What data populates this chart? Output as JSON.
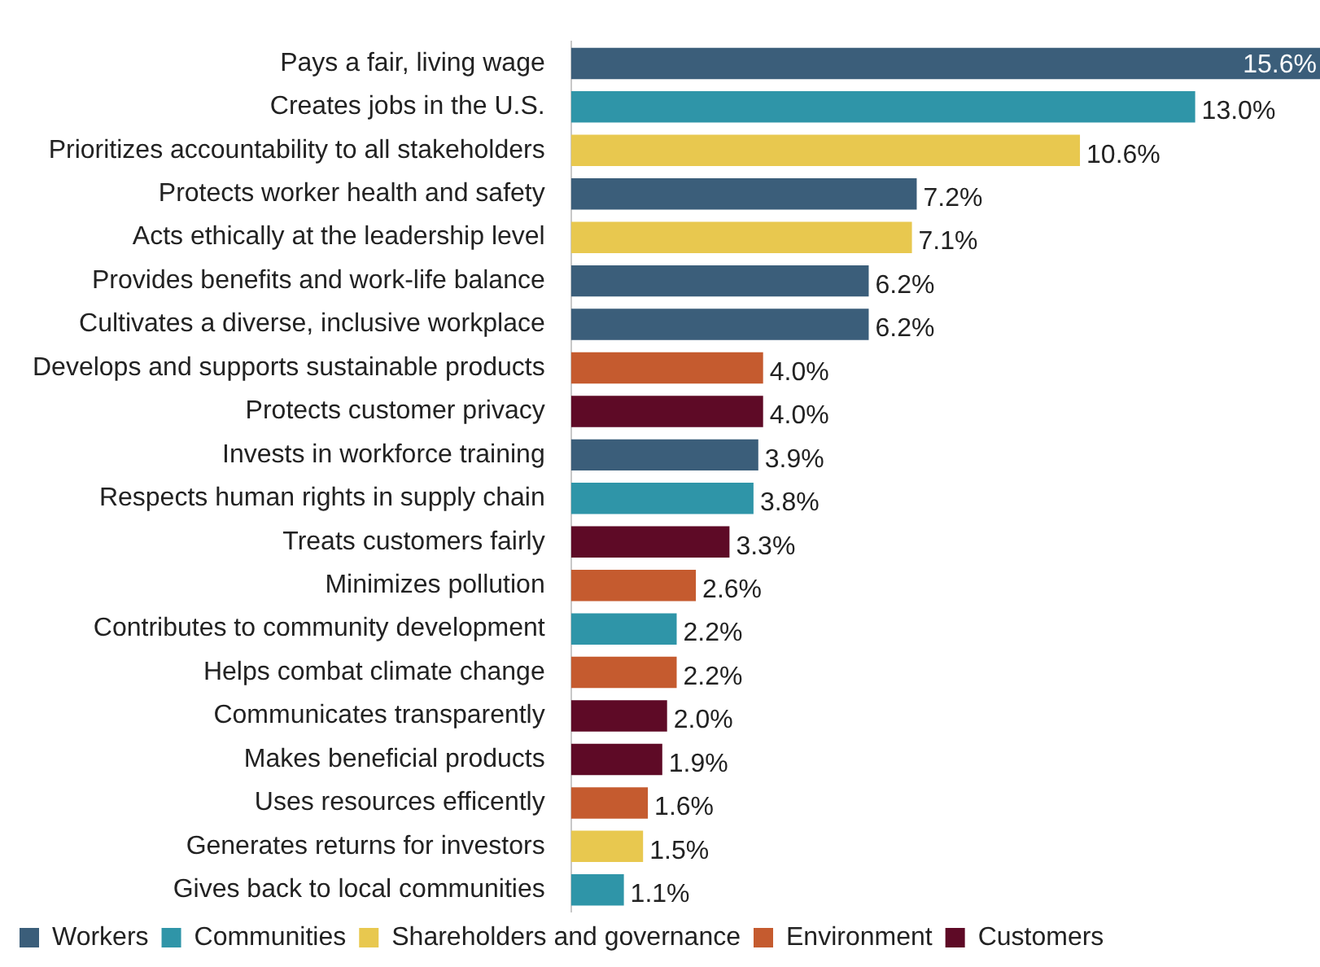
{
  "chart_data": {
    "type": "bar",
    "orientation": "horizontal",
    "stacked": true,
    "legend": "bottom",
    "grid": false,
    "categories": [
      "Pays a fair, living wage",
      "Creates jobs in the U.S.",
      "Prioritizes accountability to all stakeholders",
      "Protects worker health and safety",
      "Acts ethically at the leadership level",
      "Provides benefits and work-life balance",
      "Cultivates a diverse, inclusive workplace",
      "Develops and supports sustainable products",
      "Protects customer privacy",
      "Invests in workforce training",
      "Respects human rights in supply chain",
      "Treats customers fairly",
      "Minimizes pollution",
      "Contributes to community development",
      "Helps combat climate change",
      "Communicates transparently",
      "Makes beneficial products",
      "Uses resources efficently",
      "Generates returns for investors",
      "Gives back to local communities"
    ],
    "series": [
      {
        "name": "Workers",
        "color": "#3b5e7a",
        "values": [
          15.6,
          null,
          null,
          7.2,
          null,
          6.2,
          6.2,
          null,
          null,
          3.9,
          null,
          null,
          null,
          null,
          null,
          null,
          null,
          null,
          null,
          null
        ],
        "value_labels": [
          "15.6%",
          null,
          null,
          "7.2%",
          null,
          "6.2%",
          "6.2%",
          null,
          null,
          "3.9%",
          null,
          null,
          null,
          null,
          null,
          null,
          null,
          null,
          null,
          null
        ]
      },
      {
        "name": "Communities",
        "color": "#2f95a8",
        "values": [
          null,
          13.0,
          null,
          null,
          null,
          null,
          null,
          null,
          null,
          null,
          3.8,
          null,
          null,
          2.2,
          null,
          null,
          null,
          null,
          null,
          1.1
        ],
        "value_labels": [
          null,
          "13.0%",
          null,
          null,
          null,
          null,
          null,
          null,
          null,
          null,
          "3.8%",
          null,
          null,
          "2.2%",
          null,
          null,
          null,
          null,
          null,
          "1.1%"
        ]
      },
      {
        "name": "Shareholders and governance",
        "color": "#e8c84f",
        "values": [
          null,
          null,
          10.6,
          null,
          7.1,
          null,
          null,
          null,
          null,
          null,
          null,
          null,
          null,
          null,
          null,
          null,
          null,
          null,
          1.5,
          null
        ],
        "value_labels": [
          null,
          null,
          "10.6%",
          null,
          "7.1%",
          null,
          null,
          null,
          null,
          null,
          null,
          null,
          null,
          null,
          null,
          null,
          null,
          null,
          "1.5%",
          null
        ]
      },
      {
        "name": "Environment",
        "color": "#c55b2f",
        "values": [
          null,
          null,
          null,
          null,
          null,
          null,
          null,
          4.0,
          null,
          null,
          null,
          null,
          2.6,
          null,
          2.2,
          null,
          null,
          1.6,
          null,
          null
        ],
        "value_labels": [
          null,
          null,
          null,
          null,
          null,
          null,
          null,
          "4.0%",
          null,
          null,
          null,
          null,
          "2.6%",
          null,
          "2.2%",
          null,
          null,
          "1.6%",
          null,
          null
        ]
      },
      {
        "name": "Customers",
        "color": "#5e0a26",
        "values": [
          null,
          null,
          null,
          null,
          null,
          null,
          null,
          null,
          4.0,
          null,
          null,
          3.3,
          null,
          null,
          null,
          2.0,
          1.9,
          null,
          null,
          null
        ],
        "value_labels": [
          null,
          null,
          null,
          null,
          null,
          null,
          null,
          null,
          "4.0%",
          null,
          null,
          "3.3%",
          null,
          null,
          null,
          "2.0%",
          "1.9%",
          null,
          null,
          null
        ]
      }
    ]
  }
}
